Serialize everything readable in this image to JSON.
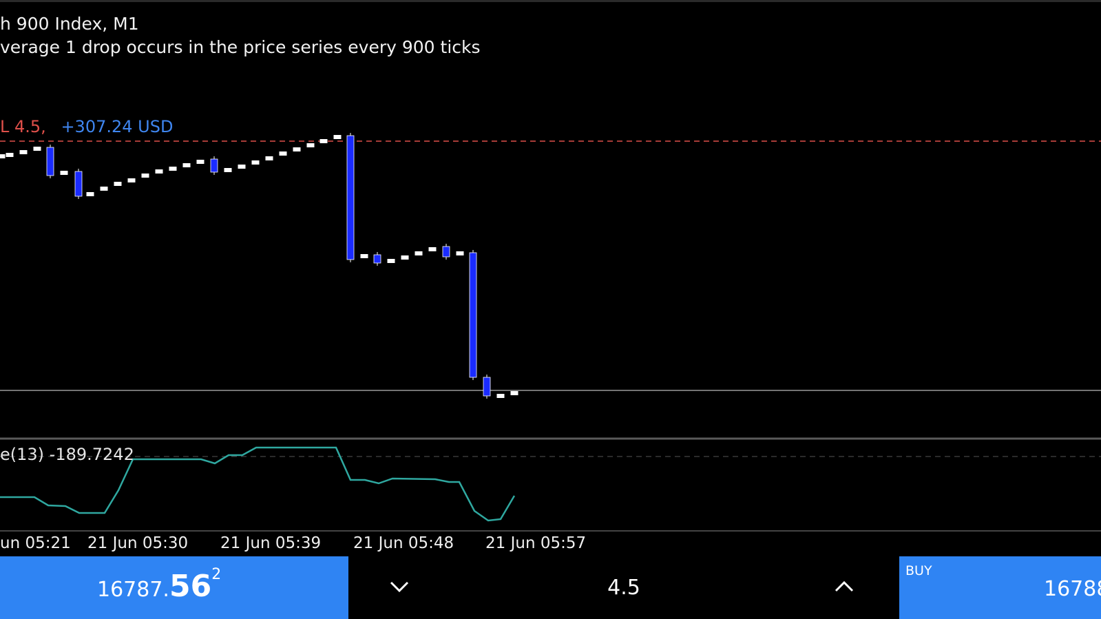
{
  "header": {
    "title": "h 900 Index, M1",
    "subtitle": "verage 1 drop occurs in the price series every 900 ticks"
  },
  "position": {
    "lot_label": "L 4.5,",
    "pnl_label": "+307.24 USD"
  },
  "indicator": {
    "label": "e(13) -189.7242"
  },
  "time_axis": [
    "un 05:21",
    "21 Jun 05:30",
    "21 Jun 05:39",
    "21 Jun 05:48",
    "21 Jun 05:57"
  ],
  "trade_panel": {
    "sell_price_small": "16787.",
    "sell_price_big": "56",
    "sell_price_sup": "2",
    "volume": "4.5",
    "buy_label": "BUY",
    "buy_price": "16788"
  },
  "colors": {
    "background": "#000000",
    "bear_candle": "#1a2bff",
    "bull_candle": "#ffffff",
    "entry_line": "#e0504a",
    "bid_line": "#9a9a9a",
    "indicator_line": "#2fa8a0",
    "trade_button": "#2f84f3"
  },
  "icons": {
    "volume_down": "chevron-down-icon",
    "volume_up": "chevron-up-icon"
  }
}
